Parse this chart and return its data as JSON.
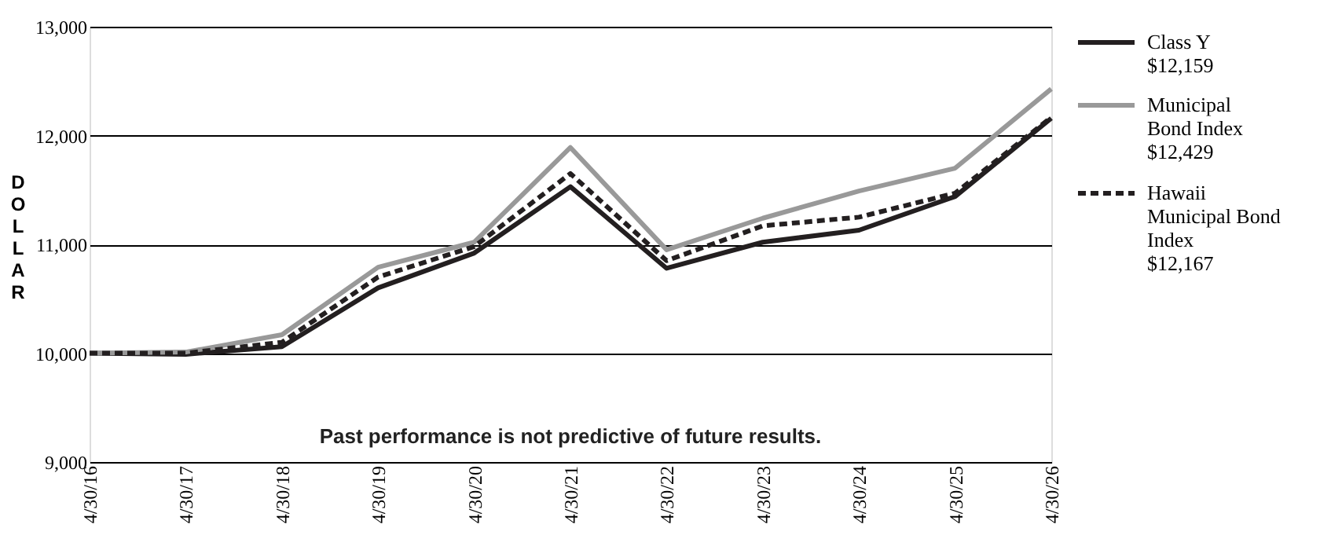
{
  "chart_data": {
    "type": "line",
    "ylabel": "DOLLAR",
    "categories": [
      "4/30/16",
      "4/30/17",
      "4/30/18",
      "4/30/19",
      "4/30/20",
      "4/30/21",
      "4/30/22",
      "4/30/23",
      "4/30/24",
      "4/30/25",
      "4/30/26"
    ],
    "series": [
      {
        "name": "Class Y\n$12,159",
        "color": "#231f20",
        "line_style": "solid",
        "values": [
          10000,
          9990,
          10060,
          10600,
          10920,
          11530,
          10780,
          11020,
          11130,
          11440,
          12159
        ]
      },
      {
        "name": "Municipal\nBond Index\n$12,429",
        "color": "#999999",
        "line_style": "solid",
        "values": [
          10000,
          10010,
          10170,
          10790,
          11020,
          11890,
          10950,
          11240,
          11490,
          11700,
          12429
        ]
      },
      {
        "name": "Hawaii\nMunicipal Bond\nIndex\n$12,167",
        "color": "#231f20",
        "line_style": "dashed",
        "values": [
          10000,
          10000,
          10100,
          10700,
          10980,
          11650,
          10850,
          11170,
          11250,
          11470,
          12167
        ]
      }
    ],
    "ylim": [
      9000,
      13000
    ],
    "yticks": [
      {
        "value": 9000,
        "label": "9,000"
      },
      {
        "value": 10000,
        "label": "10,000"
      },
      {
        "value": 11000,
        "label": "11,000"
      },
      {
        "value": 12000,
        "label": "12,000"
      },
      {
        "value": 13000,
        "label": "13,000"
      }
    ],
    "grid": "y",
    "legend": "top right",
    "marker": "none",
    "annotations": [
      "Past performance is not predictive of future results."
    ]
  }
}
